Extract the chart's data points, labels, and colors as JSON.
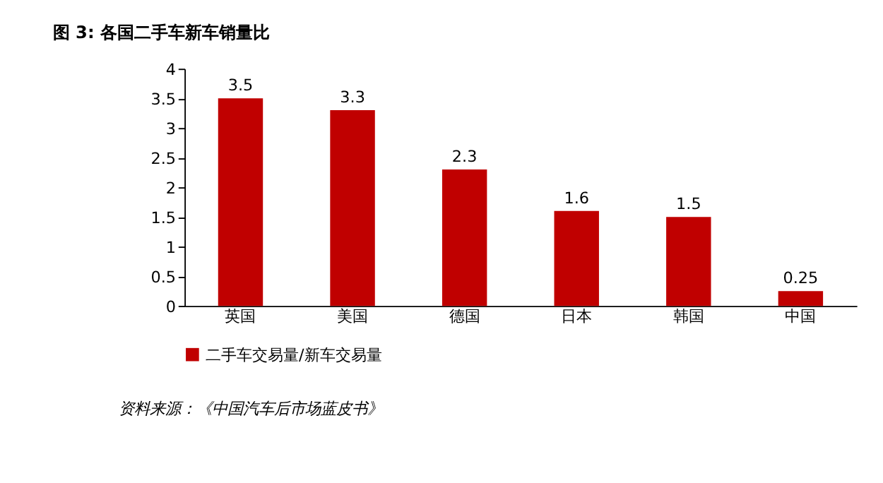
{
  "chart_data": {
    "type": "bar",
    "title": "图 3:      各国二手车新车销量比",
    "categories": [
      "英国",
      "美国",
      "德国",
      "日本",
      "韩国",
      "中国"
    ],
    "series": [
      {
        "name": "二手车交易量/新车交易量",
        "color": "#c00000",
        "values": [
          3.5,
          3.3,
          2.3,
          1.6,
          1.5,
          0.25
        ]
      }
    ],
    "ylim": [
      0,
      4
    ],
    "yticks": [
      0,
      0.5,
      1,
      1.5,
      2,
      2.5,
      3,
      3.5,
      4
    ],
    "data_labels": true,
    "legend": "bottom",
    "grid": false,
    "annotations": [
      "资料来源：《中国汽车后市场蓝皮书》"
    ]
  }
}
